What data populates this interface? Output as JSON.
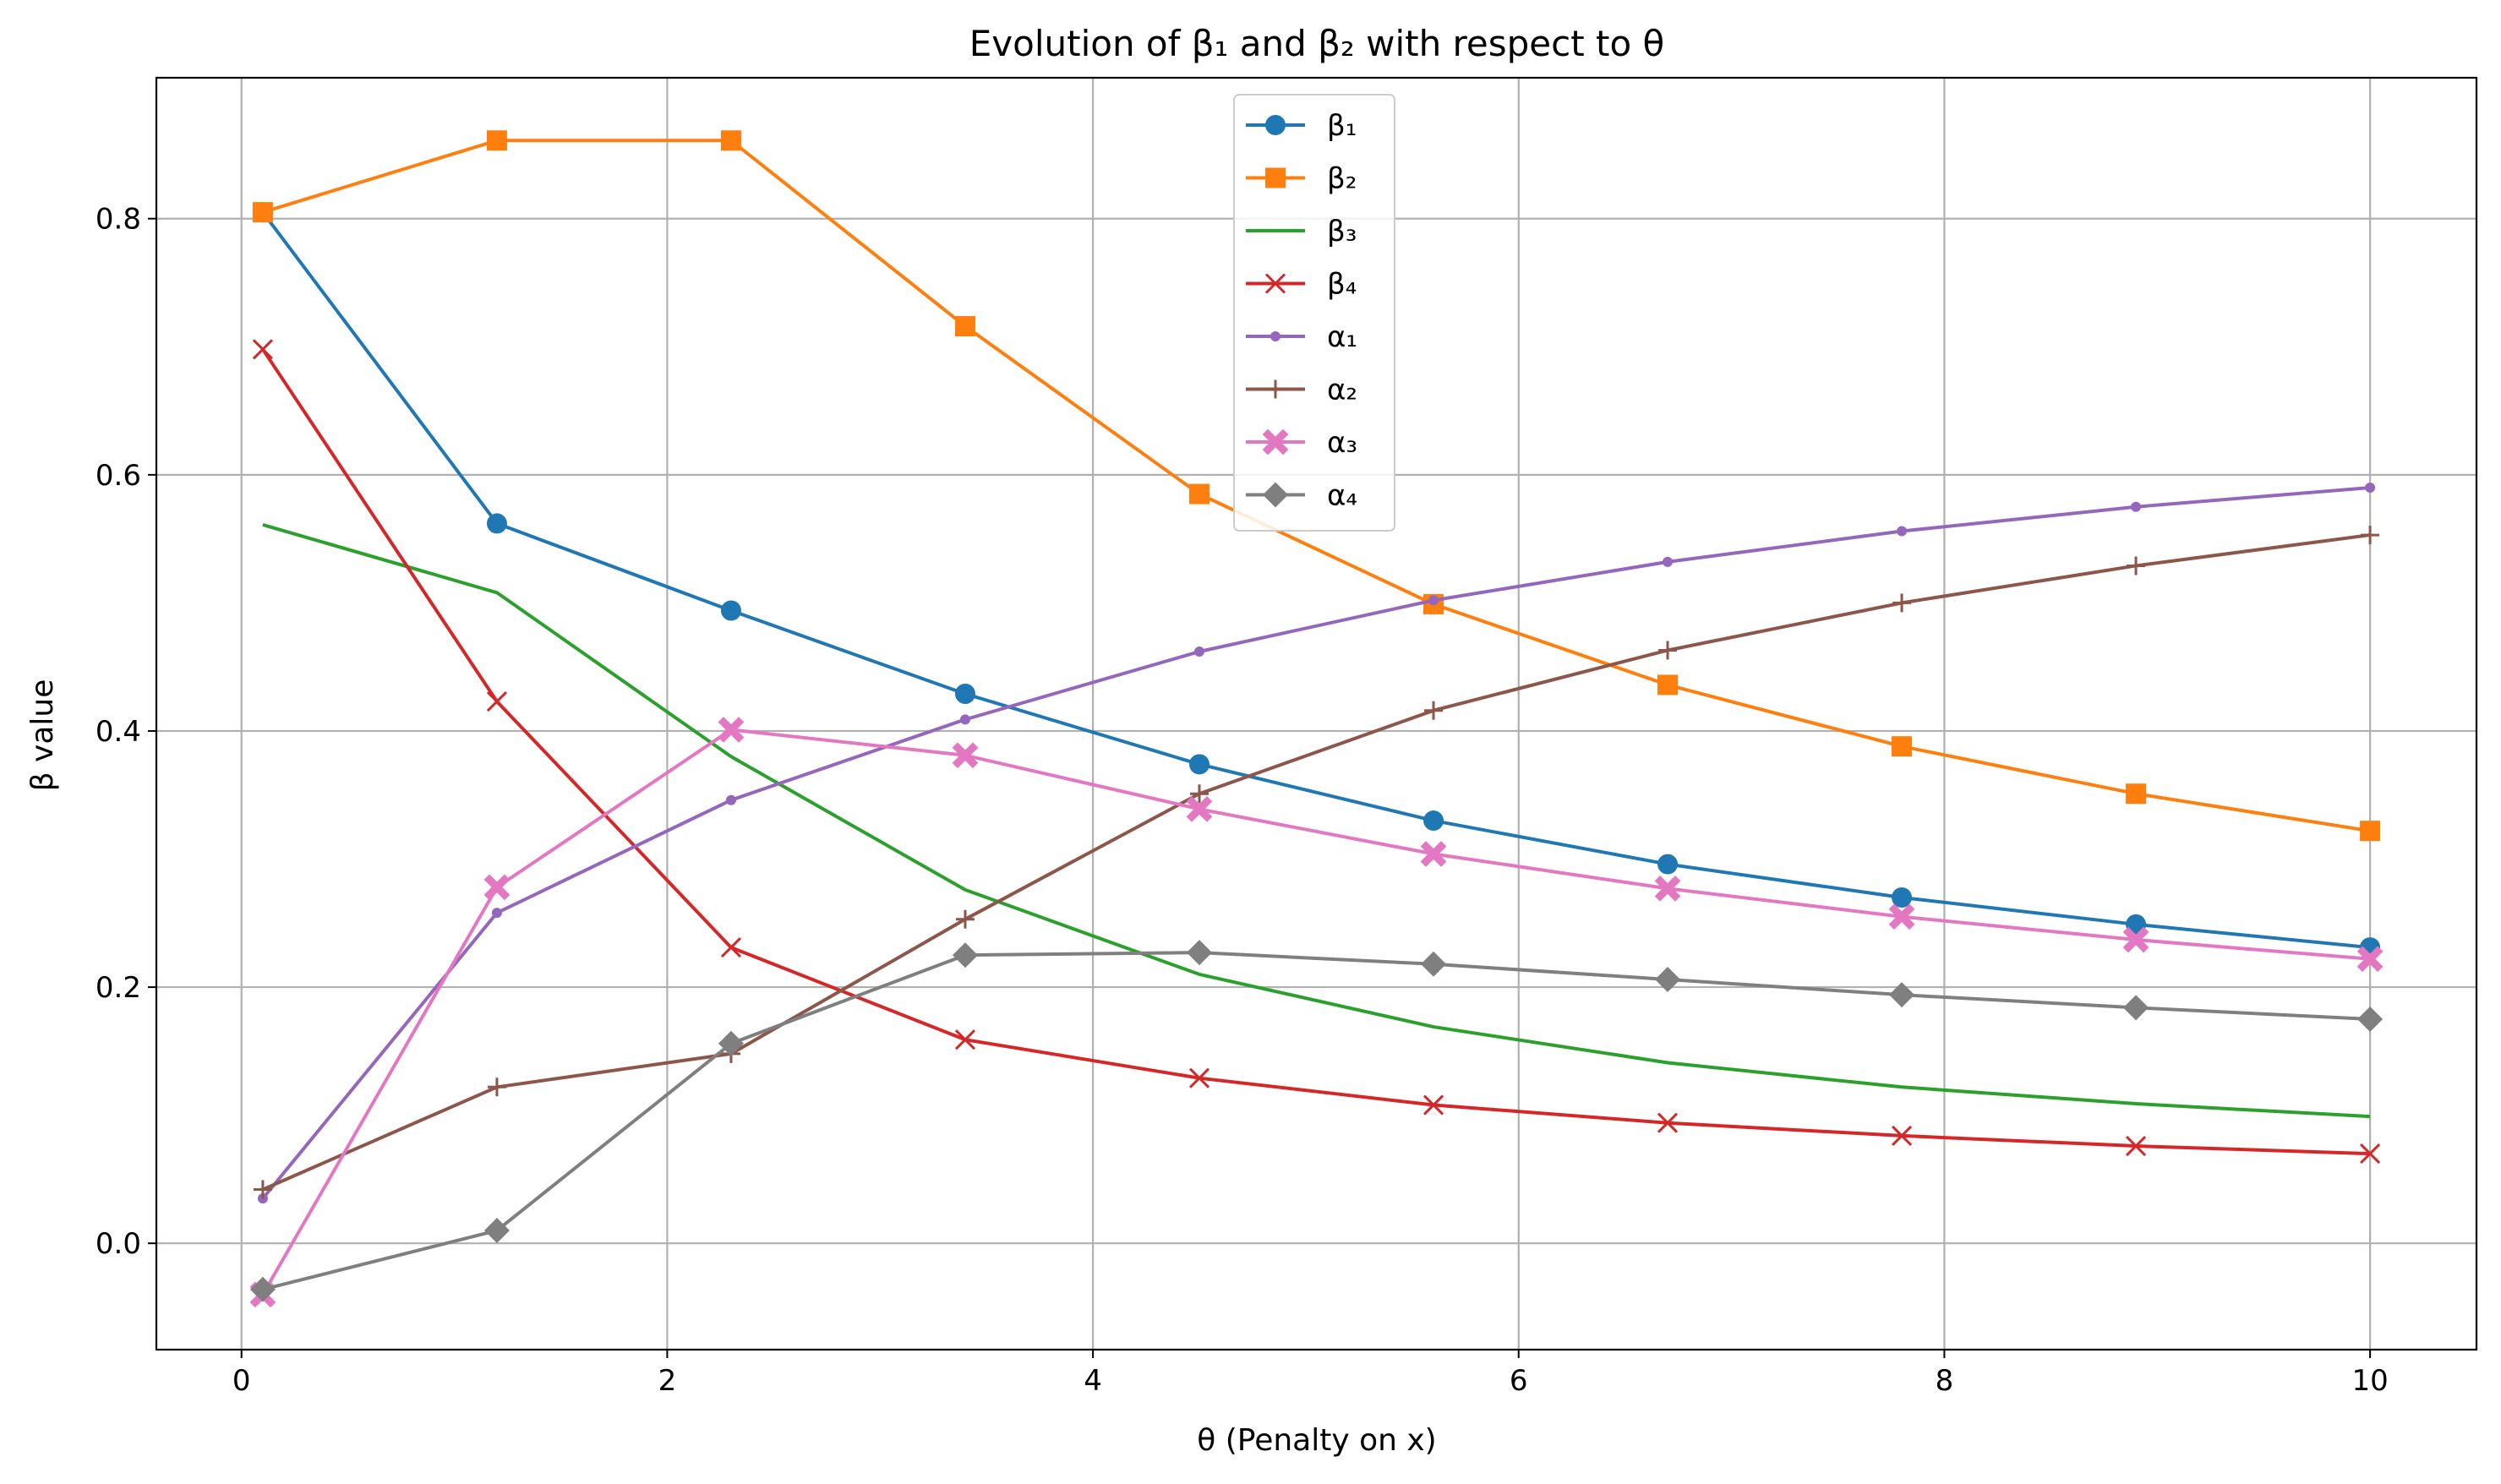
{
  "chart_data": {
    "type": "line",
    "title": "Evolution of β₁ and β₂ with respect to θ",
    "xlabel": "θ (Penalty on x)",
    "ylabel": "β value",
    "xlim": [
      -0.4,
      10.5
    ],
    "ylim": [
      -0.083,
      0.91
    ],
    "xticks": [
      "0",
      "2",
      "4",
      "6",
      "8",
      "10"
    ],
    "yticks": [
      "0.0",
      "0.2",
      "0.4",
      "0.6",
      "0.8"
    ],
    "xtick_values": [
      0,
      2,
      4,
      6,
      8,
      10
    ],
    "ytick_values": [
      0.0,
      0.2,
      0.4,
      0.6,
      0.8
    ],
    "grid": true,
    "legend_position": "top-center",
    "x": [
      0.1,
      1.2,
      2.3,
      3.4,
      4.5,
      5.6,
      6.7,
      7.8,
      8.9,
      10.0
    ],
    "series": [
      {
        "name": "β₁",
        "color": "#1f77b4",
        "marker": "circle",
        "values": [
          0.805,
          0.562,
          0.494,
          0.429,
          0.374,
          0.33,
          0.296,
          0.27,
          0.249,
          0.231
        ]
      },
      {
        "name": "β₂",
        "color": "#ff7f0e",
        "marker": "square",
        "values": [
          0.805,
          0.861,
          0.861,
          0.716,
          0.585,
          0.499,
          0.436,
          0.388,
          0.351,
          0.322
        ]
      },
      {
        "name": "β₃",
        "color": "#2ca02c",
        "marker": "none",
        "values": [
          0.561,
          0.508,
          0.38,
          0.276,
          0.21,
          0.169,
          0.141,
          0.122,
          0.109,
          0.099
        ]
      },
      {
        "name": "β₄",
        "color": "#d62728",
        "marker": "x",
        "values": [
          0.698,
          0.423,
          0.231,
          0.159,
          0.129,
          0.108,
          0.094,
          0.084,
          0.076,
          0.07
        ]
      },
      {
        "name": "α₁",
        "color": "#9467bd",
        "marker": "dot",
        "values": [
          0.035,
          0.258,
          0.346,
          0.409,
          0.462,
          0.502,
          0.532,
          0.556,
          0.575,
          0.59
        ]
      },
      {
        "name": "α₂",
        "color": "#8c564b",
        "marker": "plus",
        "values": [
          0.042,
          0.122,
          0.148,
          0.253,
          0.351,
          0.416,
          0.463,
          0.5,
          0.529,
          0.553
        ]
      },
      {
        "name": "α₃",
        "color": "#e377c2",
        "marker": "filled-x",
        "values": [
          -0.04,
          0.278,
          0.401,
          0.381,
          0.339,
          0.304,
          0.277,
          0.255,
          0.237,
          0.222
        ]
      },
      {
        "name": "α₄",
        "color": "#7f7f7f",
        "marker": "diamond",
        "values": [
          -0.036,
          0.01,
          0.156,
          0.225,
          0.227,
          0.218,
          0.206,
          0.194,
          0.184,
          0.175
        ]
      }
    ]
  }
}
